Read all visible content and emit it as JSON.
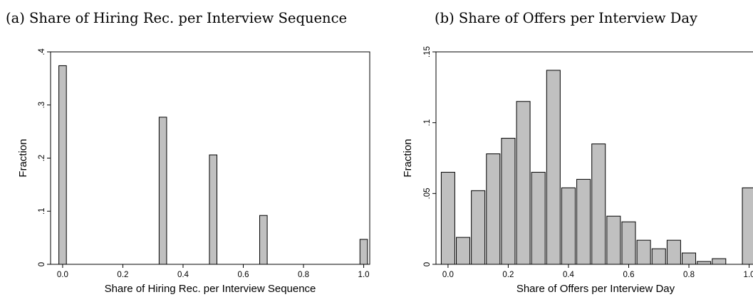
{
  "chart_data": [
    {
      "type": "bar",
      "panel_title": "(a) Share of Hiring Rec. per Interview Sequence",
      "xlabel": "Share of Hiring Rec. per Interview Sequence",
      "ylabel": "Fraction",
      "xlim": [
        -0.04,
        1.02
      ],
      "ylim": [
        0,
        0.4
      ],
      "x_ticks": [
        0,
        0.2,
        0.4,
        0.6,
        0.8,
        1.0
      ],
      "x_tick_labels": [
        "0.0",
        "0.2",
        "0.4",
        "0.6",
        "0.8",
        "1.0"
      ],
      "y_ticks": [
        0,
        0.1,
        0.2,
        0.3,
        0.4
      ],
      "y_tick_labels": [
        "0",
        ".1",
        ".2",
        ".3",
        ".4"
      ],
      "bar_width": 0.025,
      "x": [
        0.0,
        0.333,
        0.5,
        0.667,
        1.0
      ],
      "values": [
        0.374,
        0.277,
        0.206,
        0.092,
        0.047
      ],
      "grid": false,
      "bar_color": "#c0c0c0"
    },
    {
      "type": "bar",
      "panel_title": "(b) Share of Offers per Interview Day",
      "xlabel": "Share of Offers per Interview Day",
      "ylabel": "Fraction",
      "xlim": [
        -0.04,
        1.02
      ],
      "ylim": [
        0,
        0.15
      ],
      "x_ticks": [
        0,
        0.2,
        0.4,
        0.6,
        0.8,
        1.0
      ],
      "x_tick_labels": [
        "0.0",
        "0.2",
        "0.4",
        "0.6",
        "0.8",
        "1.0"
      ],
      "y_ticks": [
        0,
        0.05,
        0.1,
        0.15
      ],
      "y_tick_labels": [
        "0",
        ".05",
        ".1",
        ".15"
      ],
      "bar_width": 0.045,
      "x": [
        0.0,
        0.05,
        0.1,
        0.15,
        0.2,
        0.25,
        0.3,
        0.35,
        0.4,
        0.45,
        0.5,
        0.55,
        0.6,
        0.65,
        0.7,
        0.75,
        0.8,
        0.85,
        0.9,
        1.0
      ],
      "values": [
        0.065,
        0.019,
        0.052,
        0.078,
        0.089,
        0.115,
        0.065,
        0.137,
        0.054,
        0.06,
        0.085,
        0.034,
        0.03,
        0.017,
        0.011,
        0.017,
        0.008,
        0.002,
        0.004,
        0.054
      ],
      "grid": false,
      "bar_color": "#c0c0c0"
    }
  ]
}
